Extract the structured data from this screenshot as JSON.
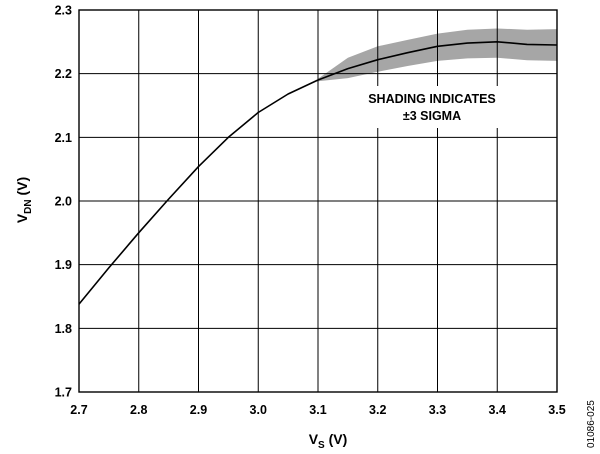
{
  "chart_data": {
    "type": "line",
    "title": "",
    "xlabel": {
      "main": "V",
      "sub": "S",
      "unit": " (V)"
    },
    "ylabel": {
      "main": "V",
      "sub": "DN",
      "unit": " (V)"
    },
    "xlim": [
      2.7,
      3.5
    ],
    "ylim": [
      1.7,
      2.3
    ],
    "xticks": [
      "2.7",
      "2.8",
      "2.9",
      "3.0",
      "3.1",
      "3.2",
      "3.3",
      "3.4",
      "3.5"
    ],
    "yticks": [
      "1.7",
      "1.8",
      "1.9",
      "2.0",
      "2.1",
      "2.2",
      "2.3"
    ],
    "grid": true,
    "annotation": [
      "SHADING INDICATES",
      "±3 SIGMA"
    ],
    "series": [
      {
        "x": [
          2.7,
          2.75,
          2.8,
          2.85,
          2.9,
          2.95,
          3.0,
          3.05,
          3.1,
          3.15,
          3.2,
          3.25,
          3.3,
          3.35,
          3.4,
          3.45,
          3.5
        ],
        "y": [
          1.838,
          1.895,
          1.95,
          2.003,
          2.054,
          2.1,
          2.139,
          2.168,
          2.19,
          2.208,
          2.222,
          2.233,
          2.243,
          2.248,
          2.25,
          2.246,
          2.245
        ]
      }
    ],
    "band": {
      "x": [
        3.1,
        3.15,
        3.2,
        3.25,
        3.3,
        3.35,
        3.4,
        3.45,
        3.5
      ],
      "upper": [
        2.192,
        2.225,
        2.243,
        2.253,
        2.263,
        2.269,
        2.271,
        2.269,
        2.27
      ],
      "lower": [
        2.188,
        2.193,
        2.203,
        2.212,
        2.22,
        2.224,
        2.225,
        2.221,
        2.22
      ]
    },
    "colors": {
      "line": "#000000",
      "band": "#a6a6a6",
      "grid": "#000000"
    }
  },
  "figure_id": "01086-025"
}
